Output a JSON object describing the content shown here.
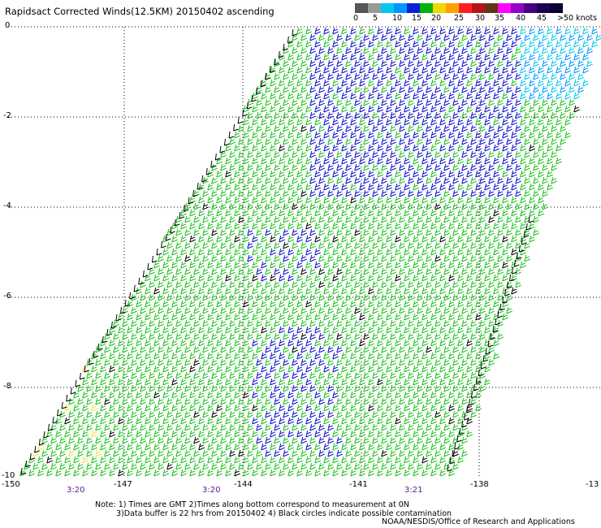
{
  "title": "Rapidsact Corrected Winds(12.5KM) 20150402 ascending",
  "colors": {
    "white": "#ffffff",
    "black": "#000000",
    "green": "#1fbf1f",
    "blue": "#0b12c8",
    "yellow": "#f0e050",
    "time_purple": "#5a1a8a",
    "scale": [
      "#555555",
      "#999999",
      "#00c8f0",
      "#0096ff",
      "#0a1fd8",
      "#00b400",
      "#f0d800",
      "#ffa000",
      "#ff1e1e",
      "#b41414",
      "#643214",
      "#ff00ff",
      "#9600c8",
      "#4b0082",
      "#1e0050",
      "#0a0032"
    ]
  },
  "scale": {
    "labels": [
      "0",
      "5",
      "10",
      "15",
      "20",
      "25",
      "30",
      "35",
      "40",
      "45",
      ">50 knots"
    ]
  },
  "map": {
    "lat_labels": [
      "0",
      "-2",
      "-4",
      "-6",
      "-8",
      "-10"
    ],
    "lon_labels": [
      "-150",
      "-147",
      "-144",
      "-141",
      "-138",
      "-13"
    ],
    "times": [
      "3:20",
      "3:20",
      "3:21"
    ]
  },
  "note": {
    "line1": "Note: 1) Times are GMT 2)Times along bottom correspond to measurement at 0N",
    "line2": "3)Data buffer is 22 hrs from 20150402 4) Black circles indicate possible contamination"
  },
  "credit": "NOAA/NESDIS/Office of Research and Applications"
}
